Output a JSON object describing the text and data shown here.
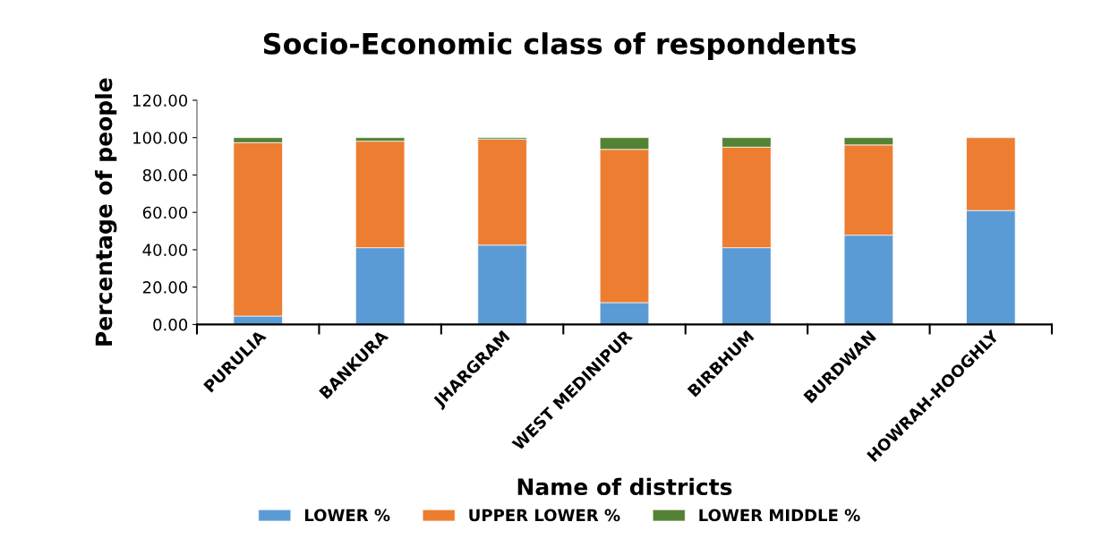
{
  "chart_data": {
    "type": "bar",
    "stacked": true,
    "title": "Socio-Economic class of respondents",
    "xlabel": "Name of districts",
    "ylabel": "Percentage of people",
    "categories": [
      "PURULIA",
      "BANKURA",
      "JHARGRAM",
      "WEST MEDINIPUR",
      "BIRBHUM",
      "BURDWAN",
      "HOWRAH-HOOGHLY"
    ],
    "series": [
      {
        "name": "LOWER %",
        "color": "#5b9bd5",
        "values": [
          4.5,
          41.1,
          42.5,
          11.7,
          41.1,
          47.8,
          61.0
        ]
      },
      {
        "name": "UPPER LOWER %",
        "color": "#ed7d31",
        "values": [
          92.8,
          57.0,
          56.7,
          82.0,
          53.8,
          48.3,
          39.0
        ]
      },
      {
        "name": "LOWER MIDDLE %",
        "color": "#548235",
        "values": [
          2.7,
          1.9,
          0.8,
          6.3,
          5.1,
          3.9,
          null
        ]
      }
    ],
    "ylim": [
      0,
      120
    ],
    "yticks": [
      {
        "value": 0,
        "label": "0.00"
      },
      {
        "value": 20,
        "label": "20.00"
      },
      {
        "value": 40,
        "label": "40.00"
      },
      {
        "value": 60,
        "label": "60.00"
      },
      {
        "value": 80,
        "label": "80.00"
      },
      {
        "value": 100,
        "label": "100.00"
      },
      {
        "value": 120,
        "label": "120.00"
      }
    ],
    "grid": false,
    "legend": "bottom"
  }
}
